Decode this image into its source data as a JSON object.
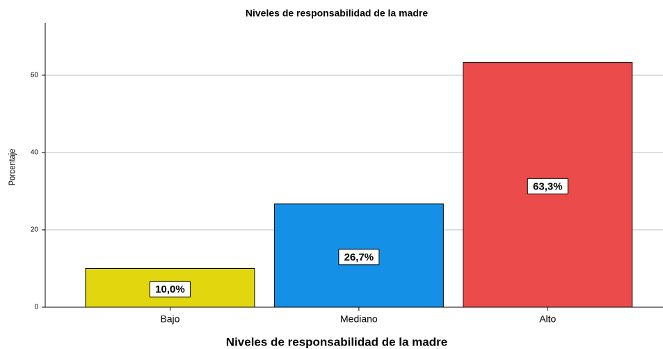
{
  "chart_data": {
    "type": "bar",
    "title": "Niveles de responsabilidad de la madre",
    "x_label": "Niveles de responsabilidad de la madre",
    "y_label": "Porcentaje",
    "categories": [
      "Bajo",
      "Mediano",
      "Alto"
    ],
    "values": [
      10.0,
      26.7,
      63.3
    ],
    "value_labels": [
      "10,0%",
      "26,7%",
      "63,3%"
    ],
    "colors": [
      "#e2d70e",
      "#1491e6",
      "#ec4b4b"
    ],
    "ylim": [
      0,
      73.5
    ],
    "yticks": [
      0,
      20,
      40,
      60
    ],
    "grid": true
  }
}
